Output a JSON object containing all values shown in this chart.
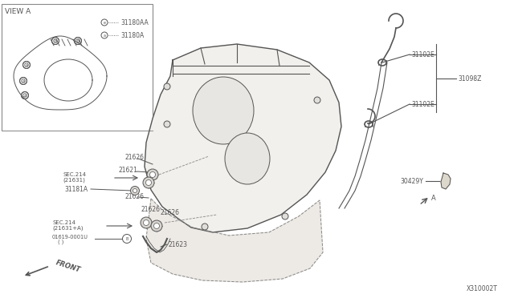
{
  "bg_color": "#ffffff",
  "line_color": "#555555",
  "diagram_id": "X310002T",
  "labels": {
    "view_a": "VIEW A",
    "label_31180AA": "31180AA",
    "label_31180A": "31180A",
    "label_31102E_top": "31102E",
    "label_31098Z": "31098Z",
    "label_31102E_bot": "31102E",
    "label_30429Y": "30429Y",
    "label_A": "A",
    "label_21626_top": "21626",
    "label_21621": "21621",
    "label_31181A": "31181A",
    "label_21626_mid": "21626",
    "label_21626_bot": "21626",
    "label_21623": "21623",
    "label_FRONT": "FRONT"
  }
}
